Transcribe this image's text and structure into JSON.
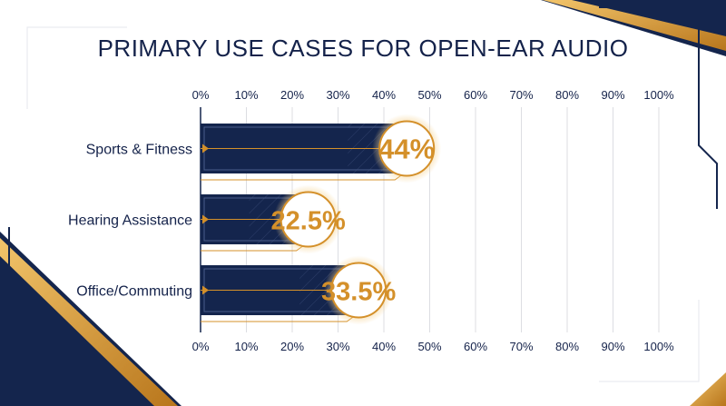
{
  "chart_data": {
    "type": "bar",
    "orientation": "horizontal",
    "title": "PRIMARY USE CASES FOR OPEN-EAR AUDIO",
    "categories": [
      "Sports & Fitness",
      "Hearing Assistance",
      "Office/Commuting"
    ],
    "values": [
      44,
      22.5,
      33.5
    ],
    "value_labels": [
      "44%",
      "22.5%",
      "33.5%"
    ],
    "xlim": [
      0,
      100
    ],
    "ticks": [
      "0%",
      "10%",
      "20%",
      "30%",
      "40%",
      "50%",
      "60%",
      "70%",
      "80%",
      "90%",
      "100%"
    ],
    "grid": true,
    "tick_labels_position": "top and bottom"
  },
  "colors": {
    "bar": "#14254d",
    "accent": "#d4902a",
    "text": "#14224a",
    "grid": "#dcdde2"
  }
}
